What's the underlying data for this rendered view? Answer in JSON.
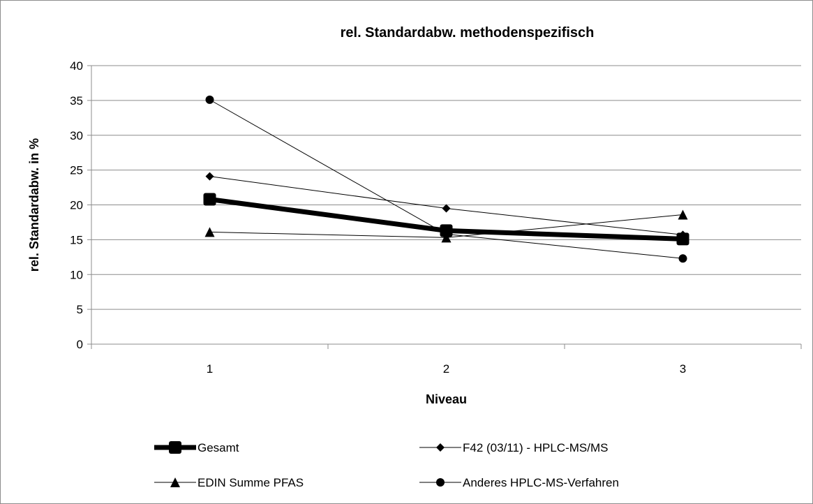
{
  "chart_data": {
    "type": "line",
    "title": "rel. Standardabw. methodenspezifisch",
    "xlabel": "Niveau",
    "ylabel": "rel. Standardabw. in %",
    "categories": [
      "1",
      "2",
      "3"
    ],
    "ylim": [
      0,
      40
    ],
    "yticks": [
      "0",
      "5",
      "10",
      "15",
      "20",
      "25",
      "30",
      "35",
      "40"
    ],
    "grid": true,
    "legend_position": "bottom",
    "series": [
      {
        "name": "Gesamt",
        "values": [
          20.8,
          16.3,
          15.1
        ],
        "marker": "square",
        "line": "bold",
        "color": "#000000"
      },
      {
        "name": "F42 (03/11) - HPLC-MS/MS",
        "values": [
          24.1,
          19.5,
          15.7
        ],
        "marker": "diamond",
        "line": "thin",
        "color": "#000000"
      },
      {
        "name": "EDIN Summe PFAS",
        "values": [
          16.1,
          15.3,
          18.6
        ],
        "marker": "triangle",
        "line": "thin",
        "color": "#000000"
      },
      {
        "name": "Anderes HPLC-MS-Verfahren",
        "values": [
          35.1,
          15.8,
          12.3
        ],
        "marker": "circle",
        "line": "thin",
        "color": "#000000"
      }
    ]
  }
}
